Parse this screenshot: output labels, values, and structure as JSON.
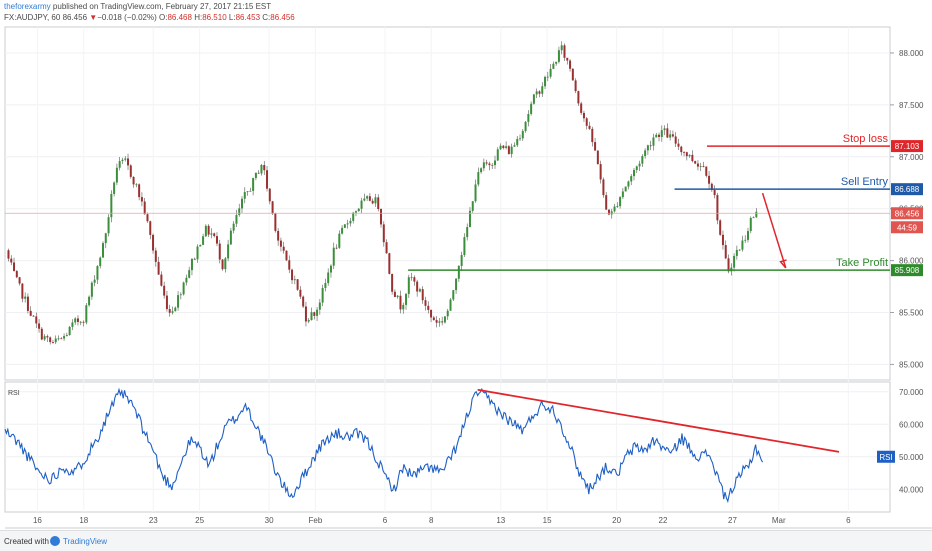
{
  "header": {
    "author": "theforexarmy",
    "published_text": "published on TradingView.com, February 27, 2017 21:15 EST",
    "symbol": "FX:AUDJPY, 60",
    "last": "86.456",
    "arrow": "▼",
    "change": "−0.018 (−0.02%)",
    "o_label": "O:",
    "o_value": "86.468",
    "h_label": "H:",
    "h_value": "86.510",
    "l_label": "L:",
    "l_value": "86.453",
    "c_label": "C:",
    "c_value": "86.456"
  },
  "footer": {
    "created_with": "Created with",
    "brand": "TradingView"
  },
  "chart_data": [
    {
      "type": "candlestick",
      "symbol": "FX:AUDJPY",
      "interval": "60",
      "ylim": [
        84.85,
        88.25
      ],
      "ytick_values": [
        85.0,
        85.5,
        86.0,
        86.5,
        87.0,
        87.5,
        88.0
      ],
      "ytick_labels": [
        "85.000",
        "85.500",
        "86.000",
        "86.500",
        "87.000",
        "87.500",
        "88.000"
      ],
      "xticks": [
        {
          "label": "16",
          "t": 1.4
        },
        {
          "label": "18",
          "t": 3.4
        },
        {
          "label": "23",
          "t": 6.4
        },
        {
          "label": "25",
          "t": 8.4
        },
        {
          "label": "30",
          "t": 11.4
        },
        {
          "label": "Feb",
          "t": 13.4
        },
        {
          "label": "6",
          "t": 16.4
        },
        {
          "label": "8",
          "t": 18.4
        },
        {
          "label": "13",
          "t": 21.4
        },
        {
          "label": "15",
          "t": 23.4
        },
        {
          "label": "20",
          "t": 26.4
        },
        {
          "label": "22",
          "t": 28.4
        },
        {
          "label": "27",
          "t": 31.4
        },
        {
          "label": "Mar",
          "t": 33.4
        },
        {
          "label": "6",
          "t": 36.4
        }
      ],
      "xlim": [
        0,
        38.2
      ],
      "close_path": [
        [
          0,
          86.1
        ],
        [
          0.5,
          85.8
        ],
        [
          1.0,
          85.55
        ],
        [
          1.5,
          85.3
        ],
        [
          2.0,
          85.2
        ],
        [
          2.5,
          85.25
        ],
        [
          3.0,
          85.4
        ],
        [
          3.4,
          85.45
        ],
        [
          3.8,
          85.8
        ],
        [
          4.3,
          86.2
        ],
        [
          4.8,
          86.9
        ],
        [
          5.2,
          86.95
        ],
        [
          5.6,
          86.75
        ],
        [
          6.0,
          86.5
        ],
        [
          6.4,
          86.1
        ],
        [
          6.8,
          85.7
        ],
        [
          7.1,
          85.5
        ],
        [
          7.4,
          85.6
        ],
        [
          7.8,
          85.85
        ],
        [
          8.2,
          86.05
        ],
        [
          8.6,
          86.3
        ],
        [
          9.0,
          86.25
        ],
        [
          9.4,
          85.95
        ],
        [
          9.8,
          86.3
        ],
        [
          10.3,
          86.6
        ],
        [
          10.7,
          86.75
        ],
        [
          11.1,
          86.95
        ],
        [
          11.4,
          86.6
        ],
        [
          11.8,
          86.2
        ],
        [
          12.2,
          85.95
        ],
        [
          12.6,
          85.75
        ],
        [
          13.0,
          85.45
        ],
        [
          13.4,
          85.5
        ],
        [
          13.8,
          85.75
        ],
        [
          14.2,
          86.1
        ],
        [
          14.6,
          86.3
        ],
        [
          15.0,
          86.45
        ],
        [
          15.4,
          86.55
        ],
        [
          15.8,
          86.6
        ],
        [
          16.1,
          86.55
        ],
        [
          16.4,
          86.15
        ],
        [
          16.7,
          85.75
        ],
        [
          17.1,
          85.55
        ],
        [
          17.5,
          85.85
        ],
        [
          18.0,
          85.65
        ],
        [
          18.4,
          85.45
        ],
        [
          18.8,
          85.4
        ],
        [
          19.2,
          85.55
        ],
        [
          19.5,
          85.9
        ],
        [
          19.9,
          86.25
        ],
        [
          20.3,
          86.75
        ],
        [
          20.6,
          86.9
        ],
        [
          21.0,
          86.95
        ],
        [
          21.4,
          87.1
        ],
        [
          21.8,
          87.05
        ],
        [
          22.3,
          87.25
        ],
        [
          22.8,
          87.55
        ],
        [
          23.2,
          87.7
        ],
        [
          23.6,
          87.85
        ],
        [
          24.0,
          88.05
        ],
        [
          24.4,
          87.85
        ],
        [
          24.8,
          87.5
        ],
        [
          25.2,
          87.25
        ],
        [
          25.6,
          86.95
        ],
        [
          25.9,
          86.5
        ],
        [
          26.2,
          86.45
        ],
        [
          26.6,
          86.65
        ],
        [
          27.0,
          86.8
        ],
        [
          27.5,
          87.0
        ],
        [
          28.0,
          87.2
        ],
        [
          28.4,
          87.25
        ],
        [
          28.9,
          87.15
        ],
        [
          29.3,
          87.05
        ],
        [
          29.8,
          86.95
        ],
        [
          30.2,
          86.9
        ],
        [
          30.6,
          86.65
        ],
        [
          30.9,
          86.2
        ],
        [
          31.2,
          85.9
        ],
        [
          31.5,
          86.05
        ],
        [
          31.9,
          86.2
        ],
        [
          32.2,
          86.4
        ],
        [
          32.5,
          86.46
        ]
      ],
      "last_price": {
        "value": 86.456,
        "label": "86.456"
      },
      "countdown_label": "44:59",
      "levels": [
        {
          "name": "Stop loss",
          "value": 87.103,
          "label": "87.103",
          "color": "#e0262a",
          "from_t": 30.3
        },
        {
          "name": "Sell Entry",
          "value": 86.688,
          "label": "86.688",
          "color": "#1f5aa8",
          "from_t": 28.9
        },
        {
          "name": "Take Profit",
          "value": 85.908,
          "label": "85.908",
          "color": "#2f8a2c",
          "from_t": 17.4
        }
      ],
      "projection": {
        "from": [
          32.7,
          86.65
        ],
        "to": [
          33.7,
          85.93
        ],
        "color": "#e0262a"
      }
    },
    {
      "type": "line",
      "name": "RSI",
      "panel_label": "RSI",
      "badge_label": "RSI",
      "ylim": [
        33,
        73
      ],
      "ytick_values": [
        40,
        50,
        60,
        70
      ],
      "ytick_labels": [
        "40.000",
        "50.000",
        "60.000",
        "70.000"
      ],
      "color": "#1f5fc4",
      "points": [
        [
          0,
          58
        ],
        [
          0.5,
          55
        ],
        [
          1.0,
          50
        ],
        [
          1.5,
          45
        ],
        [
          2.0,
          43
        ],
        [
          2.5,
          47
        ],
        [
          3.0,
          45
        ],
        [
          3.5,
          50
        ],
        [
          4.0,
          56
        ],
        [
          4.5,
          64
        ],
        [
          5.0,
          70
        ],
        [
          5.5,
          66
        ],
        [
          6.0,
          58
        ],
        [
          6.4,
          52
        ],
        [
          6.8,
          44
        ],
        [
          7.2,
          41
        ],
        [
          7.6,
          48
        ],
        [
          8.0,
          55
        ],
        [
          8.4,
          53
        ],
        [
          8.8,
          47
        ],
        [
          9.2,
          54
        ],
        [
          9.6,
          60
        ],
        [
          10.0,
          62
        ],
        [
          10.4,
          66
        ],
        [
          10.8,
          60
        ],
        [
          11.2,
          54
        ],
        [
          11.6,
          47
        ],
        [
          12.0,
          41
        ],
        [
          12.4,
          38
        ],
        [
          12.8,
          43
        ],
        [
          13.2,
          48
        ],
        [
          13.6,
          53
        ],
        [
          14.0,
          56
        ],
        [
          14.4,
          57
        ],
        [
          14.8,
          56
        ],
        [
          15.2,
          57
        ],
        [
          15.6,
          55
        ],
        [
          16.0,
          50
        ],
        [
          16.4,
          44
        ],
        [
          16.8,
          40
        ],
        [
          17.2,
          47
        ],
        [
          17.6,
          44
        ],
        [
          18.0,
          46
        ],
        [
          18.4,
          47
        ],
        [
          18.8,
          45
        ],
        [
          19.2,
          49
        ],
        [
          19.6,
          55
        ],
        [
          20.0,
          64
        ],
        [
          20.4,
          70
        ],
        [
          20.8,
          68
        ],
        [
          21.2,
          65
        ],
        [
          21.6,
          62
        ],
        [
          22.0,
          60
        ],
        [
          22.4,
          58
        ],
        [
          22.8,
          63
        ],
        [
          23.2,
          66
        ],
        [
          23.6,
          65
        ],
        [
          24.0,
          60
        ],
        [
          24.4,
          53
        ],
        [
          24.8,
          45
        ],
        [
          25.2,
          40
        ],
        [
          25.6,
          44
        ],
        [
          26.0,
          47
        ],
        [
          26.4,
          44
        ],
        [
          26.8,
          50
        ],
        [
          27.2,
          53
        ],
        [
          27.6,
          52
        ],
        [
          28.0,
          55
        ],
        [
          28.4,
          53
        ],
        [
          28.8,
          51
        ],
        [
          29.2,
          56
        ],
        [
          29.6,
          52
        ],
        [
          30.0,
          50
        ],
        [
          30.4,
          51
        ],
        [
          30.8,
          43
        ],
        [
          31.1,
          37
        ],
        [
          31.4,
          40
        ],
        [
          31.8,
          45
        ],
        [
          32.1,
          47
        ],
        [
          32.4,
          53
        ],
        [
          32.7,
          49
        ]
      ],
      "trendline": {
        "from": [
          20.4,
          70.6
        ],
        "to": [
          36.0,
          51.5
        ],
        "color": "#e0262a"
      },
      "badge_value": 50.0
    }
  ]
}
